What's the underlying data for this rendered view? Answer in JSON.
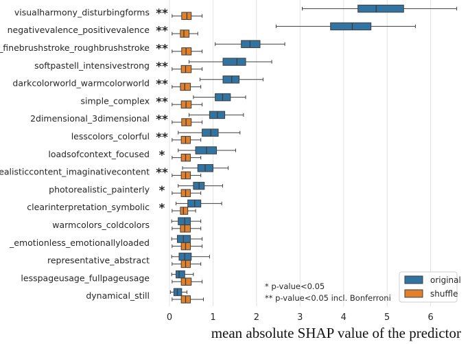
{
  "chart_data": {
    "type": "boxplot",
    "orientation": "horizontal",
    "title": "",
    "xlabel": "mean absolute SHAP value of the predictor",
    "ylabel": "",
    "xlim": [
      -0.3,
      6.7
    ],
    "xticks": [
      0,
      1,
      2,
      3,
      4,
      5,
      6
    ],
    "grid": "x",
    "legend_position": "bottom-right",
    "series": [
      {
        "name": "original",
        "color": "#3274a1"
      },
      {
        "name": "shuffle",
        "color": "#e1812c"
      }
    ],
    "significance_note": [
      "* p-value<0.05",
      "** p-value<0.05 incl. Bonferroni"
    ],
    "categories": [
      {
        "label": "visualharmony_disturbingforms",
        "sig": "**",
        "original": {
          "whislo": 3.05,
          "q1": 4.33,
          "med": 4.75,
          "q3": 5.38,
          "whishi": 6.6
        },
        "shuffle": {
          "whislo": 0.06,
          "q1": 0.28,
          "med": 0.4,
          "q3": 0.5,
          "whishi": 0.75
        }
      },
      {
        "label": "negativevalence_positivevalence",
        "sig": "**",
        "original": {
          "whislo": 2.45,
          "q1": 3.7,
          "med": 4.2,
          "q3": 4.63,
          "whishi": 5.65
        },
        "shuffle": {
          "whislo": 0.06,
          "q1": 0.25,
          "med": 0.33,
          "q3": 0.45,
          "whishi": 0.65
        }
      },
      {
        "label": "_finebrushstroke_roughbrushstroke",
        "sig": "**",
        "original": {
          "whislo": 1.05,
          "q1": 1.65,
          "med": 1.85,
          "q3": 2.08,
          "whishi": 2.65
        },
        "shuffle": {
          "whislo": 0.06,
          "q1": 0.28,
          "med": 0.38,
          "q3": 0.5,
          "whishi": 0.75
        }
      },
      {
        "label": "softpastell_intensivestrong",
        "sig": "**",
        "original": {
          "whislo": 0.45,
          "q1": 1.23,
          "med": 1.55,
          "q3": 1.75,
          "whishi": 2.35
        },
        "shuffle": {
          "whislo": 0.06,
          "q1": 0.27,
          "med": 0.37,
          "q3": 0.5,
          "whishi": 0.75
        }
      },
      {
        "label": "darkcolorworld_warmcolorworld",
        "sig": "**",
        "original": {
          "whislo": 0.7,
          "q1": 1.23,
          "med": 1.43,
          "q3": 1.6,
          "whishi": 2.15
        },
        "shuffle": {
          "whislo": 0.06,
          "q1": 0.25,
          "med": 0.35,
          "q3": 0.48,
          "whishi": 0.72
        }
      },
      {
        "label": "simple_complex",
        "sig": "**",
        "original": {
          "whislo": 0.55,
          "q1": 1.05,
          "med": 1.22,
          "q3": 1.4,
          "whishi": 1.75
        },
        "shuffle": {
          "whislo": 0.06,
          "q1": 0.27,
          "med": 0.38,
          "q3": 0.5,
          "whishi": 0.75
        }
      },
      {
        "label": "2dimensional_3dimensional",
        "sig": "**",
        "original": {
          "whislo": 0.45,
          "q1": 0.92,
          "med": 1.1,
          "q3": 1.27,
          "whishi": 1.7
        },
        "shuffle": {
          "whislo": 0.06,
          "q1": 0.28,
          "med": 0.38,
          "q3": 0.5,
          "whishi": 0.75
        }
      },
      {
        "label": "lesscolors_colorful",
        "sig": "**",
        "original": {
          "whislo": 0.2,
          "q1": 0.75,
          "med": 0.95,
          "q3": 1.12,
          "whishi": 1.62
        },
        "shuffle": {
          "whislo": 0.06,
          "q1": 0.27,
          "med": 0.37,
          "q3": 0.48,
          "whishi": 0.72
        }
      },
      {
        "label": "loadsofcontext_focused",
        "sig": "*",
        "original": {
          "whislo": 0.2,
          "q1": 0.6,
          "med": 0.85,
          "q3": 1.08,
          "whishi": 1.52
        },
        "shuffle": {
          "whislo": 0.06,
          "q1": 0.27,
          "med": 0.37,
          "q3": 0.48,
          "whishi": 0.72
        }
      },
      {
        "label": "realisticcontent_imaginativecontent",
        "sig": "**",
        "original": {
          "whislo": 0.3,
          "q1": 0.65,
          "med": 0.82,
          "q3": 1.0,
          "whishi": 1.35
        },
        "shuffle": {
          "whislo": 0.06,
          "q1": 0.27,
          "med": 0.37,
          "q3": 0.48,
          "whishi": 0.72
        }
      },
      {
        "label": "photorealistic_painterly",
        "sig": "*",
        "original": {
          "whislo": 0.2,
          "q1": 0.55,
          "med": 0.68,
          "q3": 0.8,
          "whishi": 1.22
        },
        "shuffle": {
          "whislo": 0.06,
          "q1": 0.27,
          "med": 0.37,
          "q3": 0.48,
          "whishi": 0.72
        }
      },
      {
        "label": "clearinterpretation_symbolic",
        "sig": "*",
        "original": {
          "whislo": 0.15,
          "q1": 0.42,
          "med": 0.58,
          "q3": 0.72,
          "whishi": 1.2
        },
        "shuffle": {
          "whislo": 0.06,
          "q1": 0.25,
          "med": 0.32,
          "q3": 0.42,
          "whishi": 0.6
        }
      },
      {
        "label": "warmcolors_coldcolors",
        "sig": "",
        "original": {
          "whislo": 0.05,
          "q1": 0.2,
          "med": 0.35,
          "q3": 0.48,
          "whishi": 0.72
        },
        "shuffle": {
          "whislo": 0.06,
          "q1": 0.25,
          "med": 0.35,
          "q3": 0.48,
          "whishi": 0.72
        }
      },
      {
        "label": "_emotionless_emotionallyloaded",
        "sig": "",
        "original": {
          "whislo": 0.05,
          "q1": 0.18,
          "med": 0.32,
          "q3": 0.48,
          "whishi": 0.75
        },
        "shuffle": {
          "whislo": 0.06,
          "q1": 0.27,
          "med": 0.37,
          "q3": 0.48,
          "whishi": 0.75
        }
      },
      {
        "label": "representative_abstract",
        "sig": "",
        "original": {
          "whislo": 0.05,
          "q1": 0.22,
          "med": 0.35,
          "q3": 0.5,
          "whishi": 0.92
        },
        "shuffle": {
          "whislo": 0.06,
          "q1": 0.27,
          "med": 0.37,
          "q3": 0.48,
          "whishi": 0.72
        }
      },
      {
        "label": "lesspageusage_fullpageusage",
        "sig": "",
        "original": {
          "whislo": 0.05,
          "q1": 0.15,
          "med": 0.22,
          "q3": 0.35,
          "whishi": 0.55
        },
        "shuffle": {
          "whislo": 0.06,
          "q1": 0.27,
          "med": 0.37,
          "q3": 0.5,
          "whishi": 0.75
        }
      },
      {
        "label": "dynamical_still",
        "sig": "",
        "original": {
          "whislo": 0.02,
          "q1": 0.1,
          "med": 0.18,
          "q3": 0.28,
          "whishi": 0.4
        },
        "shuffle": {
          "whislo": 0.06,
          "q1": 0.27,
          "med": 0.37,
          "q3": 0.48,
          "whishi": 0.78
        }
      }
    ]
  }
}
